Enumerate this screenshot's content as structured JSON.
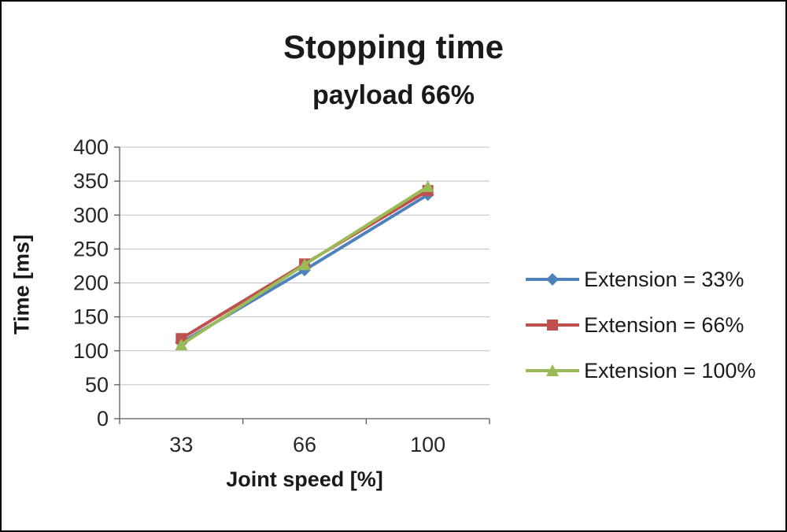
{
  "page": {
    "background": "#ffffff",
    "border_color": "#000000"
  },
  "chart_data": {
    "type": "line",
    "title": "Stopping time",
    "subtitle": "payload 66%",
    "xlabel": "Joint speed [%]",
    "ylabel": "Time [ms]",
    "categories": [
      "33",
      "66",
      "100"
    ],
    "ylim": [
      0,
      400
    ],
    "ytick_step": 50,
    "yticks": [
      0,
      50,
      100,
      150,
      200,
      250,
      300,
      350,
      400
    ],
    "grid": true,
    "legend_position": "right",
    "series": [
      {
        "name": "Extension = 33%",
        "color": "#4f81bd",
        "marker": "diamond",
        "values": [
          112,
          219,
          330
        ]
      },
      {
        "name": "Extension = 66%",
        "color": "#c0504d",
        "marker": "square",
        "values": [
          118,
          228,
          336
        ]
      },
      {
        "name": "Extension = 100%",
        "color": "#9bbb59",
        "marker": "triangle",
        "values": [
          109,
          227,
          342
        ]
      }
    ],
    "colors": {
      "gridline": "#bfbfbf",
      "axis": "#595959",
      "tick_label": "#262626"
    }
  }
}
